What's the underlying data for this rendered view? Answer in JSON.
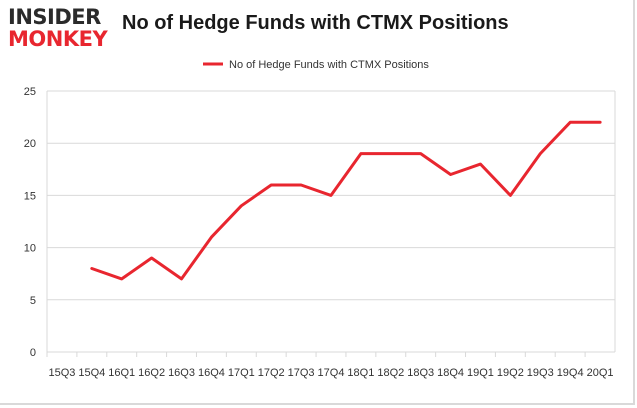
{
  "header": {
    "logo_top": "INSIDER",
    "logo_bottom": "MONKEY",
    "title": "No of Hedge Funds with CTMX Positions"
  },
  "colors": {
    "line": "#e8262f",
    "grid": "#d9d9d9",
    "logo_dark": "#2b2b2b",
    "logo_red": "#e8262f"
  },
  "chart_data": {
    "type": "line",
    "title": "No of Hedge Funds with CTMX Positions",
    "xlabel": "",
    "ylabel": "",
    "categories": [
      "2015Q3",
      "2015Q4",
      "2016Q1",
      "2016Q2",
      "2016Q3",
      "2016Q4",
      "2017Q1",
      "2017Q2",
      "2017Q3",
      "2017Q4",
      "2018Q1",
      "2018Q2",
      "2018Q3",
      "2018Q4",
      "2019Q1",
      "2019Q2",
      "2019Q3",
      "2019Q4",
      "2020Q1"
    ],
    "tick_labels": [
      "15Q3",
      "15Q4",
      "16Q1",
      "16Q2",
      "16Q3",
      "16Q4",
      "17Q1",
      "17Q2",
      "17Q3",
      "17Q4",
      "18Q1",
      "18Q2",
      "18Q3",
      "18Q4",
      "19Q1",
      "19Q2",
      "19Q3",
      "19Q4",
      "20Q1"
    ],
    "series": [
      {
        "name": "No of Hedge Funds with CTMX Positions",
        "values": [
          null,
          8,
          7,
          9,
          7,
          11,
          14,
          16,
          16,
          15,
          19,
          19,
          19,
          17,
          18,
          15,
          19,
          22,
          22
        ]
      }
    ],
    "y_ticks": [
      0,
      5,
      10,
      15,
      20,
      25
    ],
    "ylim": [
      0,
      25
    ],
    "grid": true,
    "legend_position": "top"
  }
}
